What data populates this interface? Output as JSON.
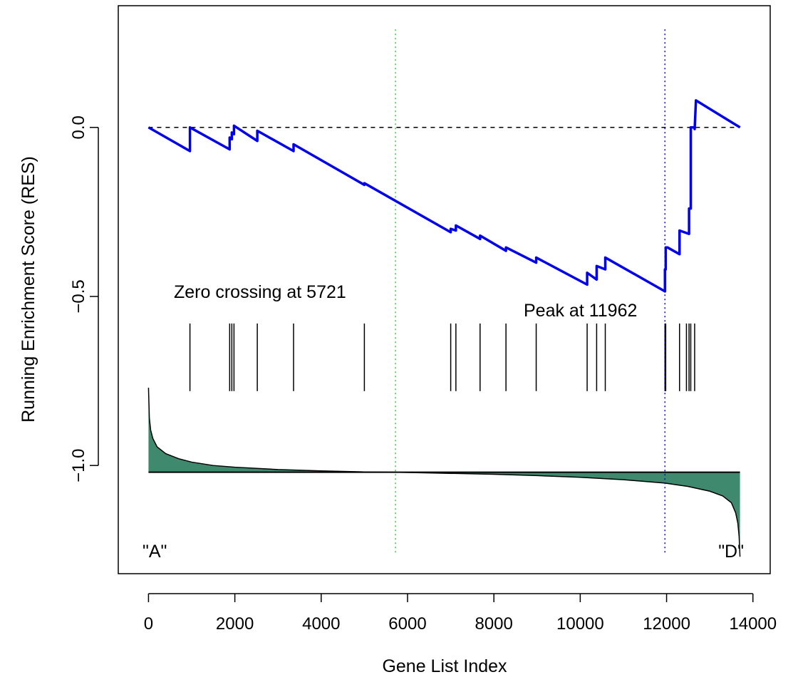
{
  "chart_data": {
    "type": "line",
    "title": "",
    "xlabel": "Gene List Index",
    "ylabel": "Running Enrichment Score (RES)",
    "xlim": [
      -700,
      14400
    ],
    "ylim": [
      -1.32,
      0.36
    ],
    "x_ticks": [
      0,
      2000,
      4000,
      6000,
      8000,
      10000,
      12000,
      14000
    ],
    "y_ticks": [
      0.0,
      -0.5,
      -1.0
    ],
    "x_tick_labels": [
      "0",
      "2000",
      "4000",
      "6000",
      "8000",
      "10000",
      "12000",
      "14000"
    ],
    "y_tick_labels": [
      "0.0",
      "−0.5",
      "−1.0"
    ],
    "grid": false,
    "colors": {
      "res_line": "#0000ee",
      "zero_crossing_line": "#33cc33",
      "peak_line": "#0000ee",
      "ranked_fill": "#3f8a6e"
    },
    "series": [
      {
        "values_x": [
          0,
          960,
          960,
          1880,
          1880,
          1930,
          1930,
          1980,
          1980,
          2520,
          2520,
          3360,
          3360,
          5000,
          5000,
          7000,
          7000,
          7120,
          7120,
          7680,
          7680,
          8280,
          8280,
          8980,
          8980,
          10160,
          10160,
          10380,
          10380,
          10580,
          10580,
          11962,
          11962,
          11980,
          11980,
          12020,
          12020,
          12300,
          12300,
          12520,
          12520,
          12560,
          12560,
          12650,
          12650,
          12680,
          12680,
          13700
        ],
        "values_y": [
          0.0,
          -0.07,
          0.0,
          -0.065,
          -0.03,
          -0.035,
          -0.015,
          -0.02,
          0.005,
          -0.04,
          -0.01,
          -0.07,
          -0.05,
          -0.17,
          -0.165,
          -0.31,
          -0.3,
          -0.305,
          -0.29,
          -0.33,
          -0.32,
          -0.365,
          -0.355,
          -0.4,
          -0.385,
          -0.465,
          -0.43,
          -0.45,
          -0.41,
          -0.42,
          -0.385,
          -0.485,
          -0.42,
          -0.42,
          -0.355,
          -0.355,
          -0.355,
          -0.375,
          -0.305,
          -0.315,
          -0.24,
          -0.24,
          0.0,
          0.0,
          -0.005,
          0.08,
          0.08,
          0.0
        ]
      }
    ],
    "hits": [
      960,
      1880,
      1930,
      1980,
      2520,
      3360,
      5000,
      7000,
      7120,
      7680,
      8280,
      8980,
      10160,
      10380,
      10580,
      11962,
      11980,
      12300,
      12460,
      12520,
      12560,
      12650
    ],
    "hit_band": [
      -0.58,
      -0.78
    ],
    "ranked_metric": {
      "baseline": -1.02,
      "x": [
        0,
        20,
        50,
        100,
        200,
        400,
        700,
        1000,
        1500,
        2000,
        3000,
        4000,
        5000,
        5721,
        6500,
        8000,
        9000,
        10000,
        11000,
        11962,
        12500,
        13000,
        13300,
        13500,
        13600,
        13650,
        13680,
        13700
      ],
      "y": [
        -0.77,
        -0.86,
        -0.895,
        -0.92,
        -0.945,
        -0.965,
        -0.98,
        -0.99,
        -1.0,
        -1.005,
        -1.012,
        -1.016,
        -1.019,
        -1.02,
        -1.022,
        -1.026,
        -1.03,
        -1.035,
        -1.042,
        -1.052,
        -1.062,
        -1.076,
        -1.09,
        -1.11,
        -1.14,
        -1.17,
        -1.21,
        -1.27
      ]
    },
    "zero_crossing_x": 5721,
    "peak_x": 11962,
    "annotations": {
      "zero_crossing": "Zero crossing at 5721",
      "peak": "Peak at 11962",
      "left_label": "\"A\"",
      "right_label": "\"D\""
    }
  }
}
